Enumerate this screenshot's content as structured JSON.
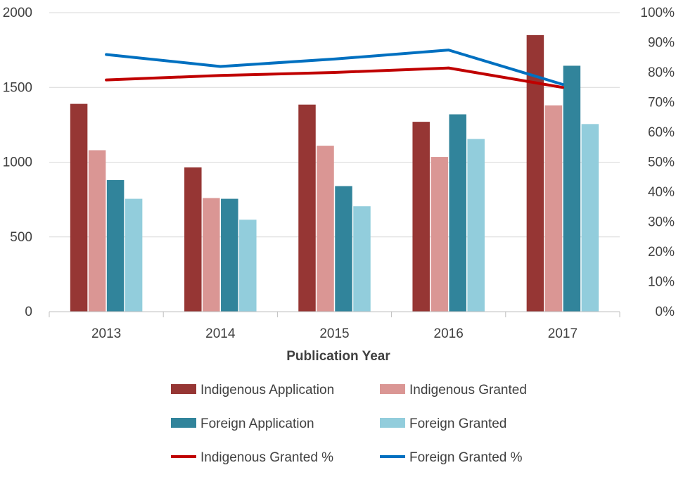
{
  "chart_data": {
    "type": "bar",
    "xlabel": "Publication Year",
    "categories": [
      "2013",
      "2014",
      "2015",
      "2016",
      "2017"
    ],
    "ylim_left": [
      0,
      2000
    ],
    "ylim_right": [
      0,
      100
    ],
    "left_ticks": [
      "0",
      "500",
      "1000",
      "1500",
      "2000"
    ],
    "right_ticks": [
      "0%",
      "10%",
      "20%",
      "30%",
      "40%",
      "50%",
      "60%",
      "70%",
      "80%",
      "90%",
      "100%"
    ],
    "grid": true,
    "legend_position": "bottom",
    "series": [
      {
        "name": "Indigenous Application",
        "type": "bar",
        "axis": "left",
        "color": "#963634",
        "values": [
          1390,
          965,
          1385,
          1270,
          1850
        ]
      },
      {
        "name": "Indigenous Granted",
        "type": "bar",
        "axis": "left",
        "color": "#DA9694",
        "values": [
          1080,
          760,
          1110,
          1035,
          1380
        ]
      },
      {
        "name": "Foreign Application",
        "type": "bar",
        "axis": "left",
        "color": "#31849B",
        "values": [
          880,
          755,
          840,
          1320,
          1645
        ]
      },
      {
        "name": "Foreign Granted",
        "type": "bar",
        "axis": "left",
        "color": "#92CDDC",
        "values": [
          755,
          615,
          705,
          1155,
          1255
        ]
      },
      {
        "name": "Indigenous Granted %",
        "type": "line",
        "axis": "right",
        "color": "#C00000",
        "values": [
          77.5,
          79,
          80,
          81.5,
          75
        ]
      },
      {
        "name": "Foreign Granted %",
        "type": "line",
        "axis": "right",
        "color": "#0070C0",
        "values": [
          86,
          82,
          84.5,
          87.5,
          76
        ]
      }
    ]
  }
}
